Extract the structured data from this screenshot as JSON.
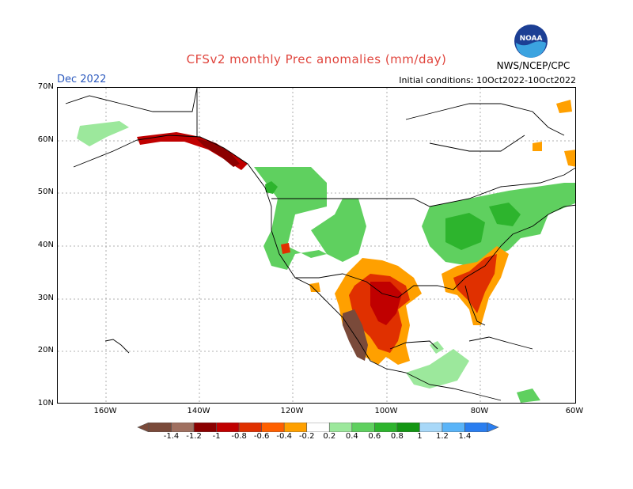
{
  "header": {
    "title": "CFSv2 monthly Prec anomalies (mm/day)",
    "month": "Dec 2022",
    "initial_conditions": "Initial conditions: 10Oct2022-10Oct2022",
    "agency": "NWS/NCEP/CPC",
    "logo_text": "NOAA"
  },
  "axes": {
    "lat_labels": [
      "70N",
      "60N",
      "50N",
      "40N",
      "30N",
      "20N",
      "10N"
    ],
    "lon_labels": [
      "160W",
      "140W",
      "120W",
      "100W",
      "80W",
      "60W"
    ]
  },
  "legend": {
    "tick_labels": [
      "-1.4",
      "-1.2",
      "-1",
      "-0.8",
      "-0.6",
      "-0.4",
      "-0.2",
      "0.2",
      "0.4",
      "0.6",
      "0.8",
      "1",
      "1.2",
      "1.4"
    ],
    "colors": [
      "#7a4a3a",
      "#a07060",
      "#8b0000",
      "#c00000",
      "#e03000",
      "#ff6000",
      "#ffa000",
      "#ffffff",
      "#9ce89c",
      "#5fd05f",
      "#2db42d",
      "#139613",
      "#a8d8f8",
      "#5ab4f8",
      "#2a7ef0"
    ]
  }
}
